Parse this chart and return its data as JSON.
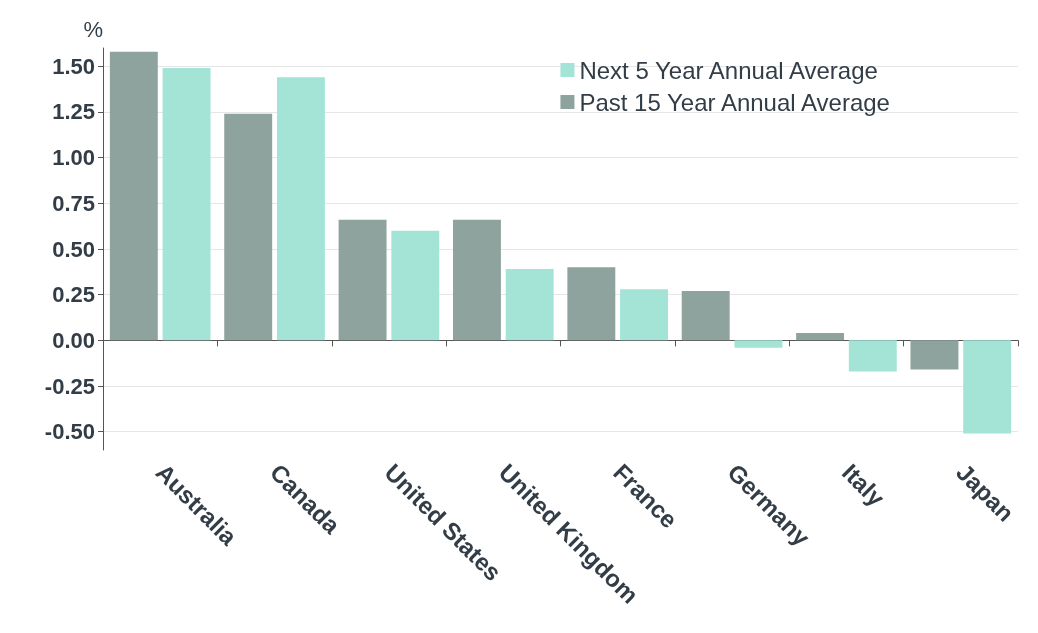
{
  "chart_data": {
    "type": "bar",
    "ylabel": "%",
    "categories": [
      "Australia",
      "Canada",
      "United States",
      "United Kingdom",
      "France",
      "Germany",
      "Italy",
      "Japan"
    ],
    "series": [
      {
        "name": "Past 15 Year Annual Average",
        "color": "#8fa39e",
        "values": [
          1.58,
          1.24,
          0.66,
          0.66,
          0.4,
          0.27,
          0.04,
          -0.16
        ]
      },
      {
        "name": "Next 5 Year Annual Average",
        "color": "#a3e4d7",
        "values": [
          1.49,
          1.44,
          0.6,
          0.39,
          0.28,
          -0.04,
          -0.17,
          -0.51
        ]
      }
    ],
    "ylim": [
      -0.6,
      1.6
    ],
    "yticks": [
      {
        "value": -0.5,
        "label": "-0.50"
      },
      {
        "value": -0.25,
        "label": "-0.25"
      },
      {
        "value": 0,
        "label": "0.00"
      },
      {
        "value": 0.25,
        "label": "0.25"
      },
      {
        "value": 0.5,
        "label": "0.50"
      },
      {
        "value": 0.75,
        "label": "0.75"
      },
      {
        "value": 1,
        "label": "1.00"
      },
      {
        "value": 1.25,
        "label": "1.25"
      },
      {
        "value": 1.5,
        "label": "1.50"
      }
    ],
    "grid": "y",
    "legend": "top right"
  }
}
